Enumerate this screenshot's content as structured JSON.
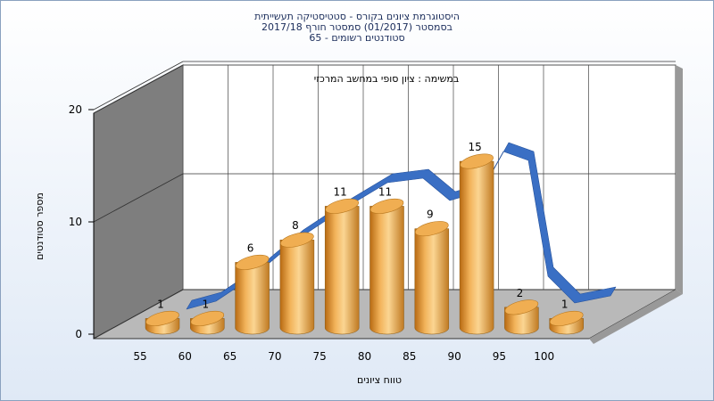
{
  "titles": {
    "line1": "היסטוגרמת ציונים בקורס - סטטיסטיקה תעשייתית",
    "line2": "בסמסטר (01/2017) סמסטר חורף 2017/18",
    "line3": "סטודנטים רשומים - 65"
  },
  "chart_data": {
    "type": "bar",
    "title": "היסטוגרמת ציונים בקורס - סטטיסטיקה תעשייתית",
    "subtitle": "במשימה : ציון סופי במחשב המרכזי",
    "xlabel": "טווח ציונים",
    "ylabel": "מספר סטודנטים",
    "x_ticks": [
      "55",
      "60",
      "65",
      "70",
      "75",
      "80",
      "85",
      "90",
      "95",
      "100"
    ],
    "y_ticks": [
      0,
      10,
      20
    ],
    "ylim": [
      0,
      20
    ],
    "categories": [
      "55",
      "60",
      "65",
      "70",
      "75",
      "80",
      "85",
      "90",
      "95",
      "100"
    ],
    "values": [
      1,
      1,
      6,
      8,
      11,
      11,
      9,
      15,
      2,
      1
    ],
    "data_labels": [
      "1",
      "1",
      "6",
      "8",
      "11",
      "11",
      "9",
      "15",
      "2",
      "1"
    ],
    "curve": "smooth normal-like ribbon overlay",
    "colors": {
      "bar": "#e9a84a",
      "curve": "#3a6fc4",
      "wall": "#808080",
      "floor": "#b9b9b9"
    },
    "grid": true
  }
}
